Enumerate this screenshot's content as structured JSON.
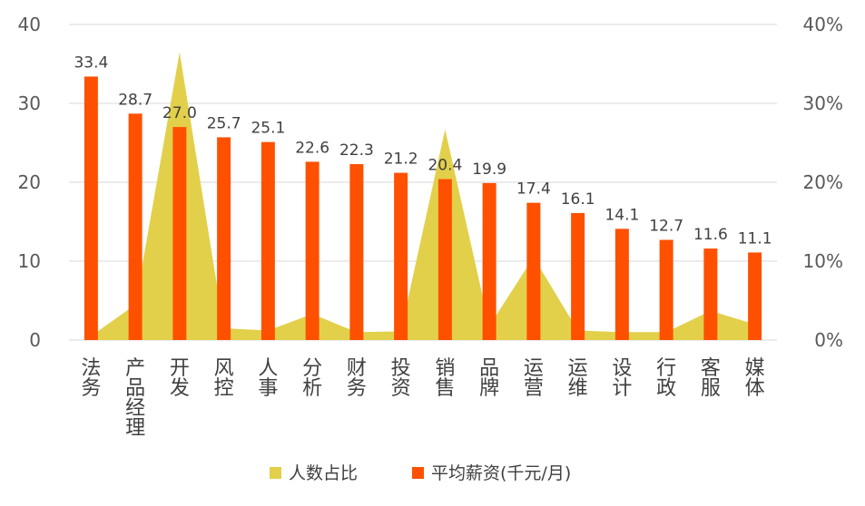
{
  "chart_data": {
    "type": "bar",
    "categories": [
      "法务",
      "产品经理",
      "开发",
      "风控",
      "人事",
      "分析",
      "财务",
      "投资",
      "销售",
      "品牌",
      "运营",
      "运维",
      "设计",
      "行政",
      "客服",
      "媒体"
    ],
    "series": [
      {
        "name": "人数占比",
        "type": "area",
        "axis": "right",
        "color": "#E2D04A",
        "values": [
          0.5,
          4.5,
          36.5,
          1.5,
          1.2,
          3.3,
          1.0,
          1.1,
          26.7,
          1.8,
          10.5,
          1.2,
          1.0,
          1.0,
          3.7,
          2.0
        ]
      },
      {
        "name": "平均薪资(千元/月)",
        "type": "bar",
        "axis": "left",
        "color": "#FF5000",
        "values": [
          33.4,
          28.7,
          27.0,
          25.7,
          25.1,
          22.6,
          22.3,
          21.2,
          20.4,
          19.9,
          17.4,
          16.1,
          14.1,
          12.7,
          11.6,
          11.1
        ]
      }
    ],
    "data_labels": [
      "33.4",
      "28.7",
      "27.0",
      "25.7",
      "25.1",
      "22.6",
      "22.3",
      "21.2",
      "20.4",
      "19.9",
      "17.4",
      "16.1",
      "14.1",
      "12.7",
      "11.6",
      "11.1"
    ],
    "left_axis": {
      "min": 0,
      "max": 40,
      "ticks": [
        "0",
        "10",
        "20",
        "30",
        "40"
      ]
    },
    "right_axis": {
      "min": 0,
      "max": 40,
      "ticks": [
        "0%",
        "10%",
        "20%",
        "30%",
        "40%"
      ]
    },
    "legend": {
      "position": "bottom",
      "items": [
        {
          "label": "人数占比",
          "color": "#E2D04A"
        },
        {
          "label": "平均薪资(千元/月)",
          "color": "#FF5000"
        }
      ]
    },
    "grid": true
  }
}
